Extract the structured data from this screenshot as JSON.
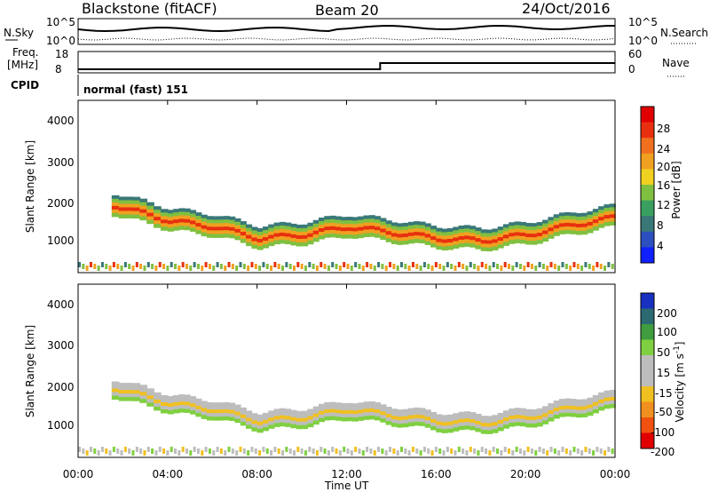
{
  "header": {
    "station": "Blackstone (fitACF)",
    "beam": "Beam 20",
    "date": "24/Oct/2016"
  },
  "noise_panel": {
    "left_label": "N.Sky",
    "left_ticks": [
      "10^5",
      "10^0"
    ],
    "right_ticks": [
      "10^5",
      "10^0"
    ],
    "right_label": "N.Search"
  },
  "freq_panel": {
    "left_label_line1": "Freq.",
    "left_label_line2": "[MHz]",
    "left_ticks": [
      "18",
      "8"
    ],
    "right_ticks": [
      "60",
      "0"
    ],
    "right_label": "Nave"
  },
  "cpid": {
    "label": "CPID",
    "value": "normal (fast) 151"
  },
  "x_axis": {
    "label": "Time UT",
    "ticks": [
      "00:00",
      "04:00",
      "08:00",
      "12:00",
      "16:00",
      "20:00",
      "00:00"
    ]
  },
  "chart_data": [
    {
      "type": "heatmap",
      "title": "Power",
      "ylabel": "Slant Range [km]",
      "yticks": [
        "1000",
        "2000",
        "3000",
        "4000"
      ],
      "colorbar_label": "Power [dB]",
      "colorbar_ticks": [
        "4",
        "8",
        "12",
        "16",
        "20",
        "24",
        "28"
      ],
      "colorbar_colors": [
        "#1020ff",
        "#2c50c0",
        "#3a7878",
        "#3aa060",
        "#80c040",
        "#f0d020",
        "#f0a020",
        "#f07020",
        "#e83010",
        "#e00000"
      ],
      "ylim": [
        180,
        4600
      ],
      "main_echo_band_km": [
        {
          "ut": "01:30",
          "range": 1950
        },
        {
          "ut": "04:00",
          "range": 1550
        },
        {
          "ut": "06:00",
          "range": 1400
        },
        {
          "ut": "08:00",
          "range": 1100
        },
        {
          "ut": "10:00",
          "range": 1200
        },
        {
          "ut": "12:00",
          "range": 1400
        },
        {
          "ut": "14:00",
          "range": 1250
        },
        {
          "ut": "16:00",
          "range": 1100
        },
        {
          "ut": "18:00",
          "range": 1050
        },
        {
          "ut": "20:00",
          "range": 1200
        },
        {
          "ut": "22:00",
          "range": 1450
        },
        {
          "ut": "24:00",
          "range": 1650
        }
      ]
    },
    {
      "type": "heatmap",
      "title": "Velocity",
      "ylabel": "Slant Range [km]",
      "yticks": [
        "1000",
        "2000",
        "3000",
        "4000"
      ],
      "colorbar_label": "Velocity [m s",
      "colorbar_label_sup": "-1",
      "colorbar_label_end": "]",
      "colorbar_ticks": [
        "200",
        "100",
        "50",
        "15",
        "-15",
        "-50",
        "-100",
        "-200"
      ],
      "colorbar_colors": [
        "#1830c0",
        "#2a6a70",
        "#3f9c3f",
        "#7fd040",
        "#bdbdbd",
        "#bdbdbd",
        "#f0c020",
        "#f09020",
        "#f05010",
        "#e00000"
      ],
      "ylim": [
        180,
        4600
      ]
    }
  ]
}
